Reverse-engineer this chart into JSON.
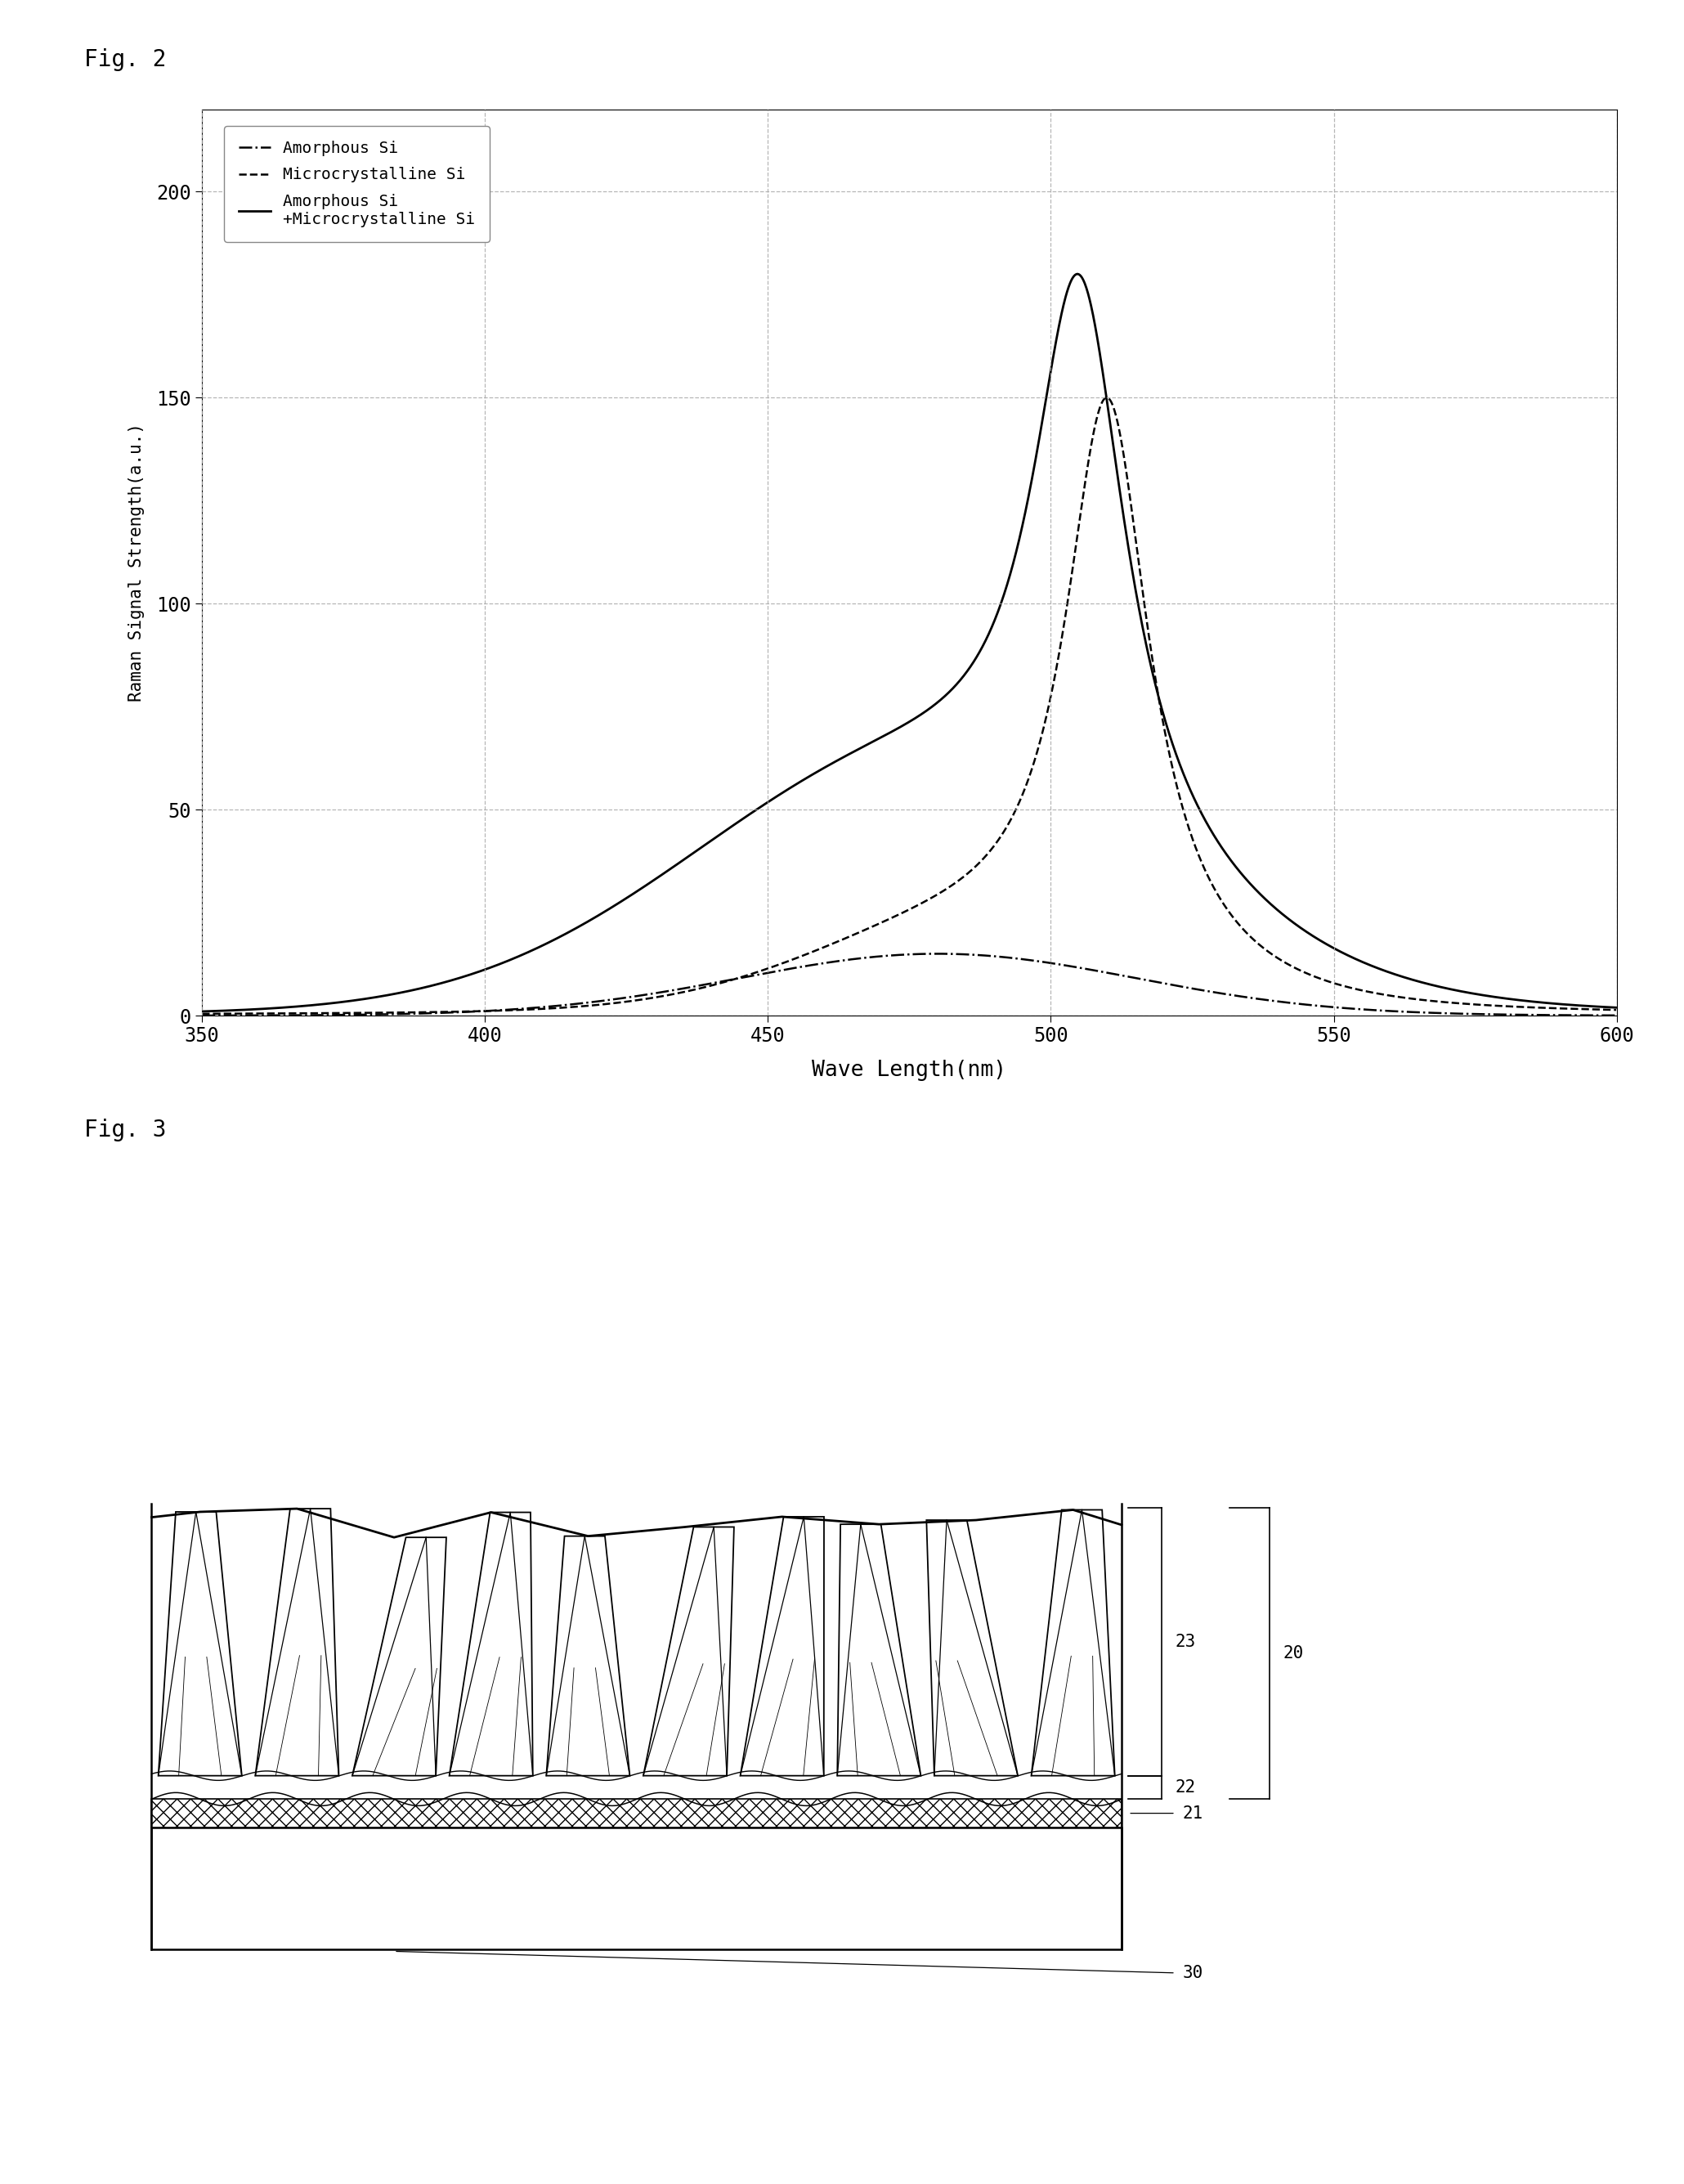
{
  "fig2_label": "Fig. 2",
  "fig3_label": "Fig. 3",
  "xlabel": "Wave Length(nm)",
  "ylabel": "Raman Signal Strength(a.u.)",
  "xlim": [
    350,
    600
  ],
  "ylim": [
    0,
    220
  ],
  "xticks": [
    350,
    400,
    450,
    500,
    550,
    600
  ],
  "yticks": [
    0,
    50,
    100,
    150,
    200
  ],
  "legend_entries": [
    "Amorphous Si",
    "Microcrystalline Si",
    "Amorphous Si\n+Microcrystalline Si"
  ],
  "bg_color": "#ffffff",
  "line_color": "#000000",
  "grid_color": "#aaaaaa",
  "legend_border_color": "#888888"
}
